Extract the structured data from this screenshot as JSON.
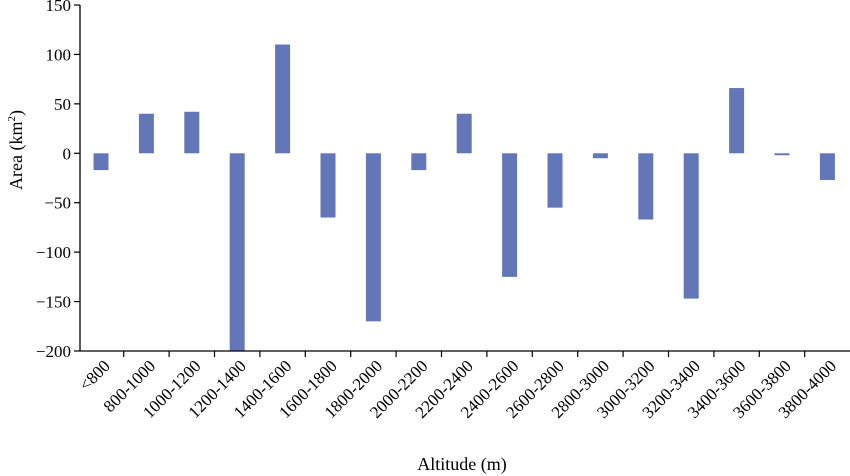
{
  "chart_data": {
    "type": "bar",
    "categories": [
      "<800",
      "800-1000",
      "1000-1200",
      "1200-1400",
      "1400-1600",
      "1600-1800",
      "1800-2000",
      "2000-2200",
      "2200-2400",
      "2400-2600",
      "2600-2800",
      "2800-3000",
      "3000-3200",
      "3200-3400",
      "3400-3600",
      "3600-3800",
      "3800-4000"
    ],
    "values": [
      -17,
      40,
      42,
      -200,
      110,
      -65,
      -170,
      -17,
      40,
      -125,
      -55,
      -5,
      -67,
      -147,
      66,
      -2,
      -27
    ],
    "xlabel": "Altitude (m)",
    "ylabel_main": "Area (km",
    "ylabel_sup": "2",
    "ylabel_close": ")",
    "ylim": [
      -200,
      150
    ],
    "yticks": [
      150,
      100,
      50,
      0,
      -50,
      -100,
      -150,
      -200
    ],
    "ytick_labels": [
      "150",
      "100",
      "50",
      "0",
      "−50",
      "−100",
      "−150",
      "−200"
    ],
    "bar_color": "#6377b8",
    "grid": false,
    "legend": false
  }
}
